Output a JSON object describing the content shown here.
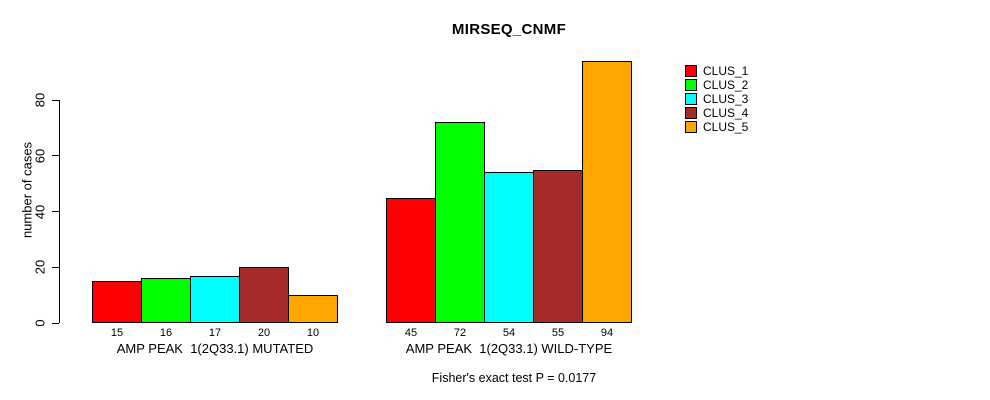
{
  "chart_data": {
    "type": "bar",
    "title": "MIRSEQ_CNMF",
    "ylabel": "number of cases",
    "xlabel": "",
    "annotation": "Fisher's exact test P = 0.0177",
    "categories": [
      "AMP PEAK  1(2Q33.1) MUTATED",
      "AMP PEAK  1(2Q33.1) WILD-TYPE"
    ],
    "series": [
      {
        "name": "CLUS_1",
        "color": "#ff0000",
        "values": [
          15,
          45
        ]
      },
      {
        "name": "CLUS_2",
        "color": "#00ff00",
        "values": [
          16,
          72
        ]
      },
      {
        "name": "CLUS_3",
        "color": "#00ffff",
        "values": [
          17,
          54
        ]
      },
      {
        "name": "CLUS_4",
        "color": "#a52a2a",
        "values": [
          20,
          55
        ]
      },
      {
        "name": "CLUS_5",
        "color": "#ffa500",
        "values": [
          10,
          94
        ]
      }
    ],
    "yticks": [
      0,
      20,
      40,
      60,
      80
    ],
    "ylim": [
      0,
      80
    ],
    "grid": false,
    "show_bar_values": true,
    "legend_position": "topright",
    "legend_labels": [
      "CLUS_1",
      "CLUS_2",
      "CLUS_3",
      "CLUS_4",
      "CLUS_5"
    ]
  }
}
